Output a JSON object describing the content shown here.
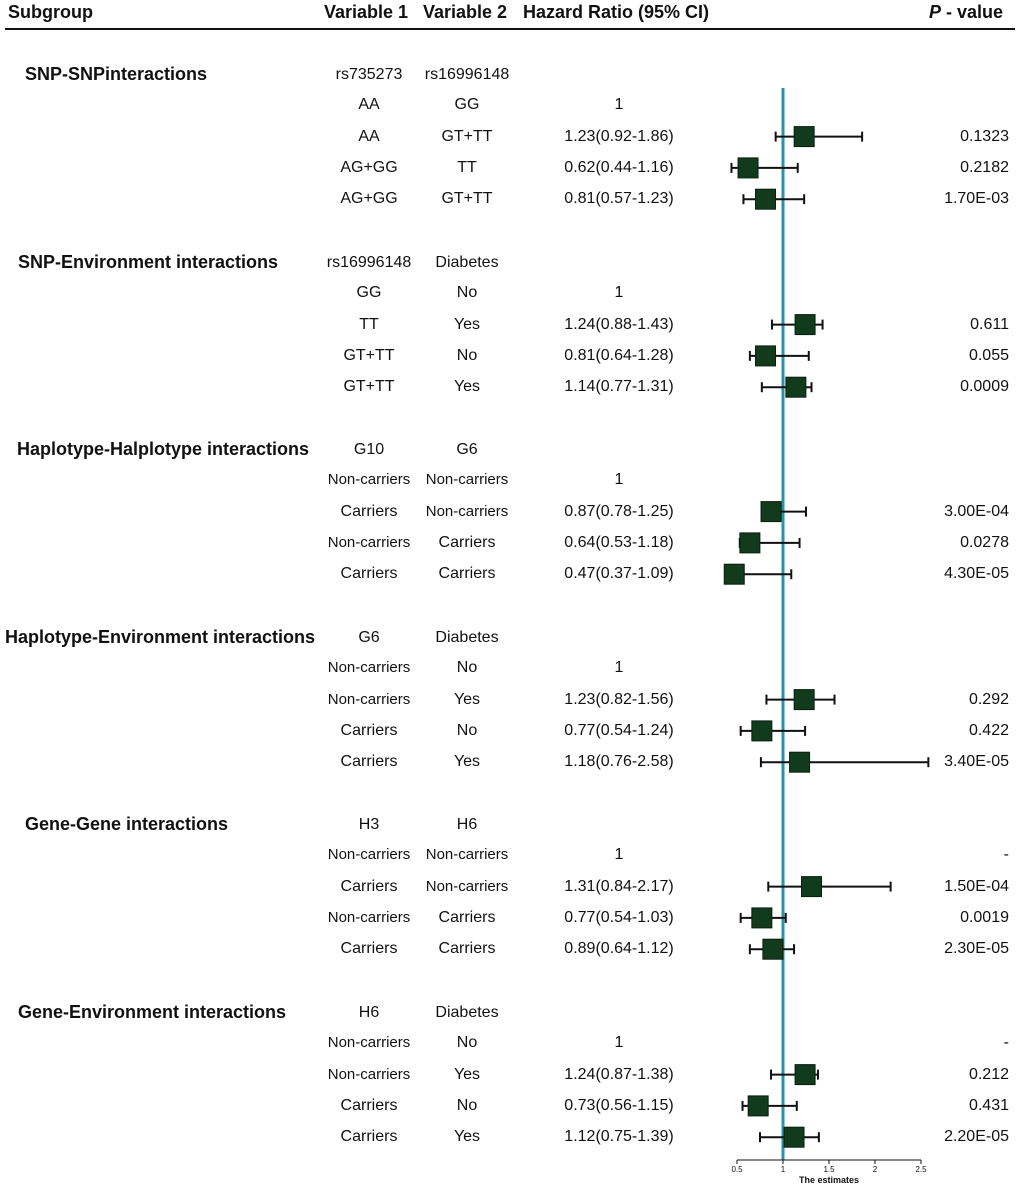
{
  "header": {
    "subgroup": "Subgroup",
    "var1": "Variable 1",
    "var2": "Variable 2",
    "hr": "Hazard Ratio (95% CI)",
    "p_italic": "P",
    "p_rest": " - value"
  },
  "groups": [
    {
      "title": "SNP-SNPinteractions",
      "var1": "rs735273",
      "var2": "rs16996148",
      "rows": [
        {
          "v1": "AA",
          "v2": "GG",
          "hr": "1",
          "p": ""
        },
        {
          "v1": "AA",
          "v2": "GT+TT",
          "hr": "1.23(0.92-1.86)",
          "p": "0.1323"
        },
        {
          "v1": "AG+GG",
          "v2": "TT",
          "hr": "0.62(0.44-1.16)",
          "p": "0.2182"
        },
        {
          "v1": "AG+GG",
          "v2": "GT+TT",
          "hr": "0.81(0.57-1.23)",
          "p": "1.70E-03"
        }
      ]
    },
    {
      "title": "SNP-Environment interactions",
      "var1": "rs16996148",
      "var2": "Diabetes",
      "rows": [
        {
          "v1": "GG",
          "v2": "No",
          "hr": "1",
          "p": ""
        },
        {
          "v1": "TT",
          "v2": "Yes",
          "hr": "1.24(0.88-1.43)",
          "p": "0.611"
        },
        {
          "v1": "GT+TT",
          "v2": "No",
          "hr": "0.81(0.64-1.28)",
          "p": "0.055"
        },
        {
          "v1": "GT+TT",
          "v2": "Yes",
          "hr": "1.14(0.77-1.31)",
          "p": "0.0009"
        }
      ]
    },
    {
      "title": "Haplotype-Halplotype interactions",
      "var1": "G10",
      "var2": "G6",
      "rows": [
        {
          "v1": "Non-carriers",
          "v2": "Non-carriers",
          "hr": "1",
          "p": ""
        },
        {
          "v1": "Carriers",
          "v2": "Non-carriers",
          "hr": "0.87(0.78-1.25)",
          "p": "3.00E-04"
        },
        {
          "v1": "Non-carriers",
          "v2": "Carriers",
          "hr": "0.64(0.53-1.18)",
          "p": "0.0278"
        },
        {
          "v1": "Carriers",
          "v2": "Carriers",
          "hr": "0.47(0.37-1.09)",
          "p": "4.30E-05"
        }
      ]
    },
    {
      "title": "Haplotype-Environment interactions",
      "var1": "G6",
      "var2": "Diabetes",
      "rows": [
        {
          "v1": "Non-carriers",
          "v2": "No",
          "hr": "1",
          "p": ""
        },
        {
          "v1": "Non-carriers",
          "v2": "Yes",
          "hr": "1.23(0.82-1.56)",
          "p": "0.292"
        },
        {
          "v1": "Carriers",
          "v2": "No",
          "hr": "0.77(0.54-1.24)",
          "p": "0.422"
        },
        {
          "v1": "Carriers",
          "v2": "Yes",
          "hr": "1.18(0.76-2.58)",
          "p": "3.40E-05"
        }
      ]
    },
    {
      "title": "Gene-Gene interactions",
      "var1": "H3",
      "var2": "H6",
      "rows": [
        {
          "v1": "Non-carriers",
          "v2": "Non-carriers",
          "hr": "1",
          "p": "-"
        },
        {
          "v1": "Carriers",
          "v2": "Non-carriers",
          "hr": "1.31(0.84-2.17)",
          "p": "1.50E-04"
        },
        {
          "v1": "Non-carriers",
          "v2": "Carriers",
          "hr": "0.77(0.54-1.03)",
          "p": "0.0019"
        },
        {
          "v1": "Carriers",
          "v2": "Carriers",
          "hr": "0.89(0.64-1.12)",
          "p": "2.30E-05"
        }
      ]
    },
    {
      "title": "Gene-Environment interactions",
      "var1": "H6",
      "var2": "Diabetes",
      "rows": [
        {
          "v1": "Non-carriers",
          "v2": "No",
          "hr": "1",
          "p": "-"
        },
        {
          "v1": "Non-carriers",
          "v2": "Yes",
          "hr": "1.24(0.87-1.38)",
          "p": "0.212"
        },
        {
          "v1": "Carriers",
          "v2": "No",
          "hr": "0.73(0.56-1.15)",
          "p": "0.431"
        },
        {
          "v1": "Carriers",
          "v2": "Yes",
          "hr": "1.12(0.75-1.39)",
          "p": "2.20E-05"
        }
      ]
    }
  ],
  "chart_data": {
    "type": "forest",
    "xlabel": "The estimates",
    "xlim": [
      0.5,
      2.5
    ],
    "xticks": [
      "0.5",
      "1",
      "1.5",
      "2",
      "2.5"
    ],
    "reference_line": 1,
    "colors": {
      "reference": "#2a93a8",
      "marker": "#123a1c",
      "whisker": "#111111"
    },
    "series": [
      {
        "hr": 1.23,
        "lo": 0.92,
        "hi": 1.86
      },
      {
        "hr": 0.62,
        "lo": 0.44,
        "hi": 1.16
      },
      {
        "hr": 0.81,
        "lo": 0.57,
        "hi": 1.23
      },
      {
        "hr": 1.24,
        "lo": 0.88,
        "hi": 1.43
      },
      {
        "hr": 0.81,
        "lo": 0.64,
        "hi": 1.28
      },
      {
        "hr": 1.14,
        "lo": 0.77,
        "hi": 1.31
      },
      {
        "hr": 0.87,
        "lo": 0.78,
        "hi": 1.25
      },
      {
        "hr": 0.64,
        "lo": 0.53,
        "hi": 1.18
      },
      {
        "hr": 0.47,
        "lo": 0.37,
        "hi": 1.09
      },
      {
        "hr": 1.23,
        "lo": 0.82,
        "hi": 1.56
      },
      {
        "hr": 0.77,
        "lo": 0.54,
        "hi": 1.24
      },
      {
        "hr": 1.18,
        "lo": 0.76,
        "hi": 2.58
      },
      {
        "hr": 1.31,
        "lo": 0.84,
        "hi": 2.17
      },
      {
        "hr": 0.77,
        "lo": 0.54,
        "hi": 1.03
      },
      {
        "hr": 0.89,
        "lo": 0.64,
        "hi": 1.12
      },
      {
        "hr": 1.24,
        "lo": 0.87,
        "hi": 1.38
      },
      {
        "hr": 0.73,
        "lo": 0.56,
        "hi": 1.15
      },
      {
        "hr": 1.12,
        "lo": 0.75,
        "hi": 1.39
      }
    ]
  }
}
